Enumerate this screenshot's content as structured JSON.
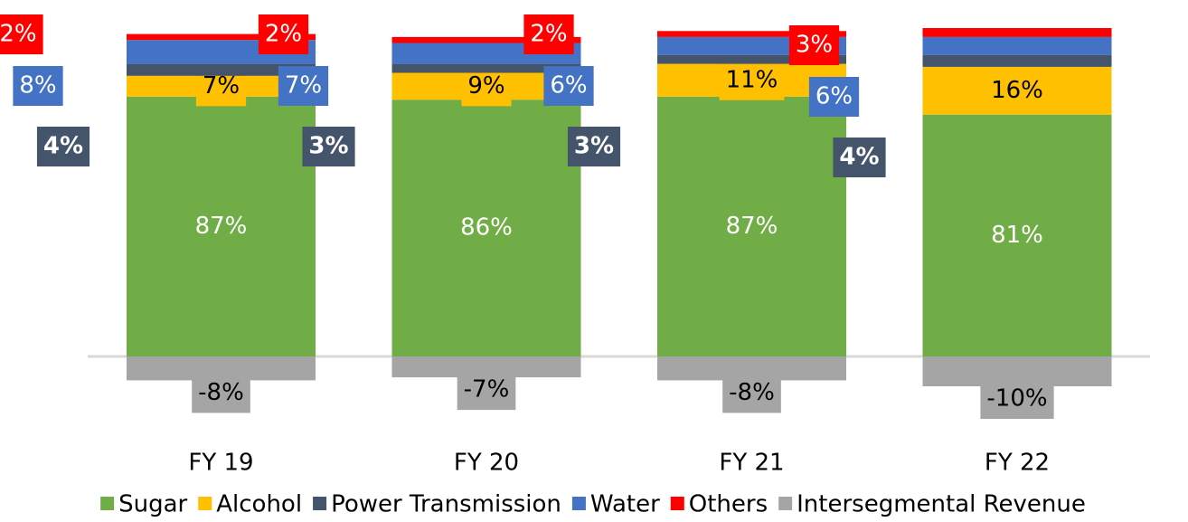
{
  "chart_data": {
    "type": "stacked_bar",
    "categories": [
      "FY 19",
      "FY 20",
      "FY 21",
      "FY 22"
    ],
    "series": [
      {
        "name": "Sugar",
        "color": "#70ad47",
        "values": [
          87,
          86,
          87,
          81
        ],
        "value_labels": [
          "87%",
          "86%",
          "87%",
          "81%"
        ]
      },
      {
        "name": "Alcohol",
        "color": "#ffc000",
        "values": [
          7,
          9,
          11,
          16
        ],
        "value_labels": [
          "7%",
          "9%",
          "11%",
          "16%"
        ]
      },
      {
        "name": "Power Transmission",
        "color": "#44546a",
        "values": [
          4,
          3,
          3,
          4
        ],
        "value_labels": [
          "4%",
          "3%",
          "3%",
          "4%"
        ]
      },
      {
        "name": "Water",
        "color": "#4472c4",
        "values": [
          8,
          7,
          6,
          6
        ],
        "value_labels": [
          "8%",
          "7%",
          "6%",
          "6%"
        ]
      },
      {
        "name": "Others",
        "color": "#ff0000",
        "values": [
          2,
          2,
          2,
          3
        ],
        "value_labels": [
          "2%",
          "2%",
          "2%",
          "3%"
        ]
      },
      {
        "name": "Intersegmental Revenue",
        "color": "#a5a5a5",
        "values": [
          -8,
          -7,
          -8,
          -10
        ],
        "value_labels": [
          "-8%",
          "-7%",
          "-8%",
          "-10%"
        ]
      }
    ]
  }
}
